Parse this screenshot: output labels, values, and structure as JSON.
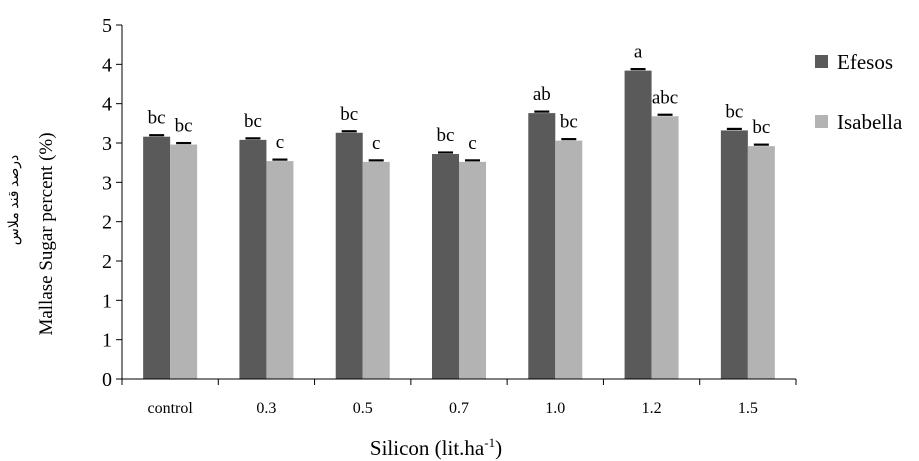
{
  "chart_data": {
    "type": "bar",
    "categories": [
      "control",
      "0.3",
      "0.5",
      "0.7",
      "1.0",
      "1.2",
      "1.5"
    ],
    "series": [
      {
        "name": "Efesos",
        "color": "#5a5a5a",
        "values": [
          3.08,
          3.04,
          3.13,
          2.86,
          3.38,
          3.92,
          3.16
        ],
        "letters": [
          "bc",
          "bc",
          "bc",
          "bc",
          "ab",
          "a",
          "bc"
        ]
      },
      {
        "name": "Isabella",
        "color": "#b3b3b3",
        "values": [
          2.98,
          2.77,
          2.76,
          2.76,
          3.03,
          3.34,
          2.96
        ],
        "letters": [
          "bc",
          "c",
          "c",
          "c",
          "bc",
          "abc",
          "bc"
        ]
      }
    ],
    "ylim": [
      0,
      4.5
    ],
    "y_ticks": [
      0,
      0.5,
      1,
      1.5,
      2,
      2.5,
      3,
      3.5,
      4,
      4.5
    ],
    "y_tick_labels": [
      "0",
      "1",
      "1",
      "2",
      "2",
      "3",
      "3",
      "4",
      "4",
      "5"
    ],
    "ylabel": "Mallase Sugar percent (%)",
    "ylabel_persian": "درصد قند ملاس",
    "xlabel_base": "Silicon (lit.ha",
    "xlabel_sup": "-1",
    "xlabel_end": ")",
    "legend_position": "right",
    "grid": false
  }
}
